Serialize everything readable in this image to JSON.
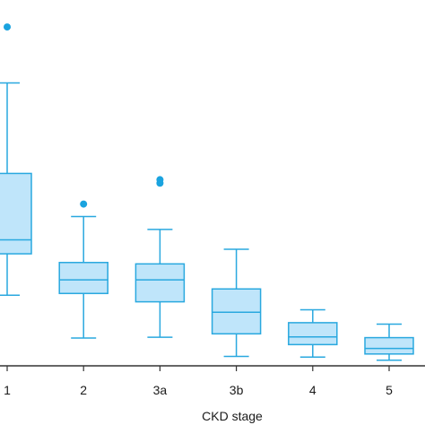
{
  "chart_data": {
    "type": "box",
    "categories": [
      "1",
      "2",
      "3a",
      "3b",
      "4",
      "5"
    ],
    "xlabel": "CKD stage",
    "ylabel": "",
    "ylim": [
      0,
      100
    ],
    "grid": false,
    "colors": {
      "box_fill": "#bfe5fa",
      "box_stroke": "#29a8df",
      "outlier": "#1aa3df",
      "axis": "#333333"
    },
    "boxes": [
      {
        "category": "1",
        "whisker_low": 20.3,
        "q1": 32.2,
        "median": 36.2,
        "q3": 55.3,
        "whisker_high": 81.3,
        "outliers": [
          97.4
        ]
      },
      {
        "category": "2",
        "whisker_low": 8.0,
        "q1": 20.8,
        "median": 24.7,
        "q3": 29.7,
        "whisker_high": 42.9,
        "outliers": [
          46.5
        ]
      },
      {
        "category": "3a",
        "whisker_low": 8.2,
        "q1": 18.4,
        "median": 24.7,
        "q3": 29.3,
        "whisker_high": 39.2,
        "outliers": [
          52.5,
          53.5
        ]
      },
      {
        "category": "3b",
        "whisker_low": 2.7,
        "q1": 9.2,
        "median": 15.4,
        "q3": 22.1,
        "whisker_high": 33.5,
        "outliers": []
      },
      {
        "category": "4",
        "whisker_low": 2.5,
        "q1": 6.1,
        "median": 8.3,
        "q3": 12.4,
        "whisker_high": 16.1,
        "outliers": []
      },
      {
        "category": "5",
        "whisker_low": 1.6,
        "q1": 3.4,
        "median": 5.0,
        "q3": 8.1,
        "whisker_high": 12.0,
        "outliers": []
      }
    ]
  }
}
